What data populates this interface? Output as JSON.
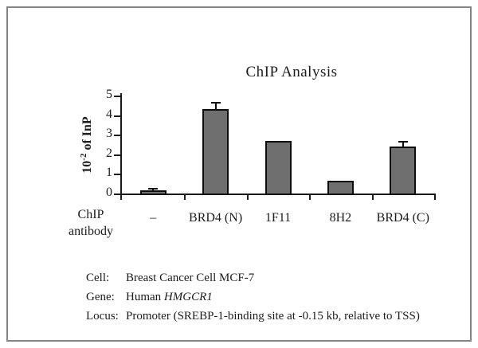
{
  "colors": {
    "bar_fill": "#6f6f6f",
    "bar_border": "#0d0d0d",
    "axis": "#1a1a1a",
    "text": "#1b1b22",
    "frame_border": "#858585",
    "background": "#ffffff"
  },
  "chart_data": {
    "type": "bar",
    "title": "ChIP Analysis",
    "ylabel_base": "10",
    "ylabel_exp": "-2",
    "ylabel_rest": " of InP",
    "xlabel": "ChIP antibody",
    "categories": [
      "–",
      "BRD4 (N)",
      "1F11",
      "8H2",
      "BRD4 (C)"
    ],
    "values": [
      0.15,
      4.3,
      2.7,
      0.65,
      2.4
    ],
    "errors": [
      0.05,
      0.3,
      0,
      0,
      0.2
    ],
    "ylim": [
      0,
      5
    ],
    "yticks": [
      0,
      1,
      2,
      3,
      4,
      5
    ],
    "grid": false,
    "legend": "none"
  },
  "x_axis_row": {
    "label_line1": "ChIP",
    "label_line2": "antibody"
  },
  "annotations": {
    "rows": [
      {
        "label": "Cell:",
        "text": "Breast Cancer Cell MCF-7",
        "italic": ""
      },
      {
        "label": "Gene:",
        "text": "Human ",
        "italic": "HMGCR1"
      },
      {
        "label": "Locus:",
        "text": "Promoter (SREBP-1-binding site at -0.15 kb, relative to TSS)",
        "italic": ""
      }
    ]
  }
}
